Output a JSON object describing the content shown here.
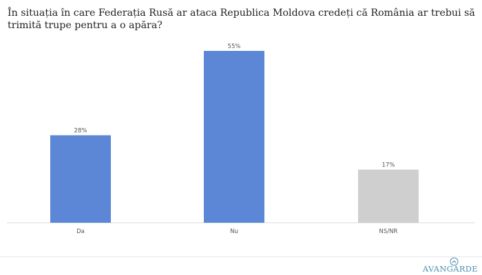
{
  "title": "În situația în care Federația Rusă ar ataca Republica Moldova credeți că România ar trebui să trimită trupe pentru a o apăra?",
  "logo_text": "AVANGARDE",
  "colors": {
    "blue": "#5b87d6",
    "gray": "#cfcfcf",
    "logo": "#4a8fb0"
  },
  "chart_data": {
    "type": "bar",
    "categories": [
      "Da",
      "Nu",
      "NS/NR"
    ],
    "values": [
      28,
      55,
      17
    ],
    "data_labels": [
      "28%",
      "55%",
      "17%"
    ],
    "bar_colors": [
      "#5b87d6",
      "#5b87d6",
      "#cfcfcf"
    ],
    "ylim": [
      0,
      55
    ],
    "grid": false,
    "legend": "none",
    "xlabel": "",
    "ylabel": ""
  }
}
